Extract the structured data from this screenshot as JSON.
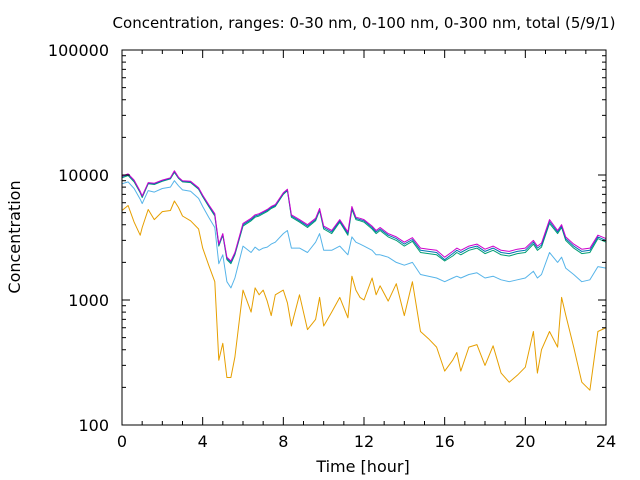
{
  "chart_data": {
    "type": "line",
    "title": "Concentration, ranges: 0-30 nm, 0-100 nm, 0-300 nm, total (5/9/1)",
    "xlabel": "Time [hour]",
    "ylabel": "Concentration",
    "xlim": [
      0,
      24
    ],
    "ylim": [
      100,
      100000
    ],
    "yscale": "log",
    "x_ticks": [
      0,
      4,
      8,
      12,
      16,
      20,
      24
    ],
    "x_tick_labels": [
      "0",
      "4",
      "8",
      "12",
      "16",
      "20",
      "24"
    ],
    "y_ticks": [
      100,
      1000,
      10000,
      100000
    ],
    "y_tick_labels": [
      "100",
      "1000",
      "10000",
      "100000"
    ],
    "grid": false,
    "series": [
      {
        "color": "#e69f00",
        "x": [
          0,
          0.3,
          0.6,
          0.9,
          1.0,
          1.3,
          1.6,
          2.0,
          2.4,
          2.6,
          2.8,
          3.0,
          3.4,
          3.8,
          4.0,
          4.3,
          4.6,
          4.8,
          5.0,
          5.2,
          5.4,
          5.6,
          6.0,
          6.4,
          6.6,
          6.8,
          7.0,
          7.2,
          7.4,
          7.6,
          8.0,
          8.2,
          8.4,
          8.8,
          9.2,
          9.6,
          9.8,
          10.0,
          10.4,
          10.8,
          11.2,
          11.4,
          11.6,
          11.8,
          12.0,
          12.4,
          12.6,
          12.8,
          13.2,
          13.6,
          14.0,
          14.4,
          14.8,
          15.2,
          15.6,
          16.0,
          16.4,
          16.6,
          16.8,
          17.2,
          17.6,
          18.0,
          18.4,
          18.8,
          19.2,
          19.6,
          20.0,
          20.4,
          20.6,
          20.8,
          21.2,
          21.6,
          21.8,
          22.0,
          22.4,
          22.8,
          23.2,
          23.6,
          24.0
        ],
        "values": [
          5200,
          5700,
          4200,
          3300,
          3800,
          5300,
          4400,
          5100,
          5200,
          6200,
          5500,
          4700,
          4300,
          3700,
          2600,
          1900,
          1400,
          330,
          450,
          240,
          240,
          350,
          1200,
          800,
          1250,
          1100,
          1200,
          980,
          750,
          1100,
          1200,
          950,
          620,
          1100,
          580,
          700,
          1050,
          620,
          800,
          1050,
          720,
          1550,
          1200,
          1050,
          1000,
          1500,
          1100,
          1300,
          980,
          1350,
          750,
          1400,
          560,
          490,
          420,
          270,
          330,
          380,
          270,
          420,
          440,
          300,
          430,
          260,
          220,
          250,
          290,
          560,
          260,
          400,
          560,
          420,
          1050,
          760,
          420,
          220,
          190,
          560,
          600
        ]
      },
      {
        "color": "#56b4e9",
        "x": [
          0,
          0.3,
          0.6,
          0.9,
          1.0,
          1.3,
          1.6,
          2.0,
          2.4,
          2.6,
          2.8,
          3.0,
          3.4,
          3.8,
          4.0,
          4.3,
          4.6,
          4.8,
          5.0,
          5.2,
          5.4,
          5.6,
          6.0,
          6.4,
          6.6,
          6.8,
          7.0,
          7.2,
          7.4,
          7.6,
          8.0,
          8.2,
          8.4,
          8.8,
          9.2,
          9.6,
          9.8,
          10.0,
          10.4,
          10.8,
          11.2,
          11.4,
          11.6,
          11.8,
          12.0,
          12.4,
          12.6,
          12.8,
          13.2,
          13.6,
          14.0,
          14.4,
          14.8,
          15.2,
          15.6,
          16.0,
          16.4,
          16.6,
          16.8,
          17.2,
          17.6,
          18.0,
          18.4,
          18.8,
          19.2,
          19.6,
          20.0,
          20.4,
          20.6,
          20.8,
          21.2,
          21.6,
          21.8,
          22.0,
          22.4,
          22.8,
          23.2,
          23.6,
          24.0
        ],
        "values": [
          8500,
          8800,
          7800,
          6400,
          5900,
          7500,
          7300,
          7800,
          8000,
          9000,
          8200,
          7600,
          7400,
          6500,
          5600,
          4600,
          3800,
          1950,
          2300,
          1400,
          1250,
          1500,
          2700,
          2400,
          2650,
          2500,
          2600,
          2650,
          2800,
          2900,
          3400,
          3600,
          2600,
          2600,
          2400,
          2900,
          3400,
          2500,
          2500,
          2700,
          2300,
          3200,
          2900,
          2800,
          2700,
          2500,
          2300,
          2300,
          2200,
          2000,
          1900,
          2000,
          1600,
          1550,
          1500,
          1400,
          1500,
          1550,
          1500,
          1600,
          1650,
          1500,
          1550,
          1450,
          1400,
          1450,
          1500,
          1700,
          1500,
          1600,
          2400,
          2000,
          2200,
          1800,
          1600,
          1400,
          1450,
          1850,
          1800
        ]
      },
      {
        "color": "#009e73",
        "x": [
          0,
          0.3,
          0.6,
          0.9,
          1.0,
          1.3,
          1.6,
          2.0,
          2.4,
          2.6,
          2.8,
          3.0,
          3.4,
          3.8,
          4.0,
          4.3,
          4.6,
          4.8,
          5.0,
          5.2,
          5.4,
          5.6,
          6.0,
          6.4,
          6.6,
          6.8,
          7.0,
          7.2,
          7.4,
          7.6,
          8.0,
          8.2,
          8.4,
          8.8,
          9.2,
          9.6,
          9.8,
          10.0,
          10.4,
          10.8,
          11.2,
          11.4,
          11.6,
          11.8,
          12.0,
          12.4,
          12.6,
          12.8,
          13.2,
          13.6,
          14.0,
          14.4,
          14.8,
          15.2,
          15.6,
          16.0,
          16.4,
          16.6,
          16.8,
          17.2,
          17.6,
          18.0,
          18.4,
          18.8,
          19.2,
          19.6,
          20.0,
          20.4,
          20.6,
          20.8,
          21.2,
          21.6,
          21.8,
          22.0,
          22.4,
          22.8,
          23.2,
          23.6,
          24.0
        ],
        "values": [
          9500,
          9900,
          8800,
          7200,
          6600,
          8500,
          8400,
          8900,
          9300,
          10500,
          9400,
          8800,
          8700,
          7700,
          6700,
          5600,
          4700,
          2700,
          3300,
          2100,
          1950,
          2300,
          3900,
          4300,
          4600,
          4700,
          4900,
          5100,
          5400,
          5600,
          7000,
          7500,
          4600,
          4200,
          3800,
          4300,
          5200,
          3700,
          3400,
          4200,
          3300,
          5300,
          4400,
          4300,
          4200,
          3700,
          3400,
          3600,
          3200,
          3000,
          2700,
          2950,
          2400,
          2350,
          2300,
          2050,
          2250,
          2400,
          2300,
          2500,
          2600,
          2350,
          2500,
          2300,
          2250,
          2350,
          2400,
          2800,
          2500,
          2650,
          4100,
          3400,
          3800,
          3000,
          2600,
          2350,
          2400,
          3100,
          2900
        ]
      },
      {
        "color": "#0072b2",
        "x": [
          0,
          0.3,
          0.6,
          0.9,
          1.0,
          1.3,
          1.6,
          2.0,
          2.4,
          2.6,
          2.8,
          3.0,
          3.4,
          3.8,
          4.0,
          4.3,
          4.6,
          4.8,
          5.0,
          5.2,
          5.4,
          5.6,
          6.0,
          6.4,
          6.6,
          6.8,
          7.0,
          7.2,
          7.4,
          7.6,
          8.0,
          8.2,
          8.4,
          8.8,
          9.2,
          9.6,
          9.8,
          10.0,
          10.4,
          10.8,
          11.2,
          11.4,
          11.6,
          11.8,
          12.0,
          12.4,
          12.6,
          12.8,
          13.2,
          13.6,
          14.0,
          14.4,
          14.8,
          15.2,
          15.6,
          16.0,
          16.4,
          16.6,
          16.8,
          17.2,
          17.6,
          18.0,
          18.4,
          18.8,
          19.2,
          19.6,
          20.0,
          20.4,
          20.6,
          20.8,
          21.2,
          21.6,
          21.8,
          22.0,
          22.4,
          22.8,
          23.2,
          23.6,
          24.0
        ],
        "values": [
          9700,
          10100,
          9000,
          7300,
          6700,
          8600,
          8500,
          9000,
          9400,
          10700,
          9500,
          8900,
          8800,
          7800,
          6800,
          5700,
          4800,
          2750,
          3350,
          2150,
          2000,
          2350,
          4000,
          4400,
          4700,
          4800,
          5000,
          5200,
          5500,
          5700,
          7100,
          7600,
          4700,
          4300,
          3900,
          4400,
          5300,
          3800,
          3500,
          4300,
          3400,
          5450,
          4500,
          4400,
          4300,
          3800,
          3500,
          3700,
          3300,
          3100,
          2800,
          3050,
          2500,
          2450,
          2400,
          2100,
          2350,
          2500,
          2400,
          2600,
          2700,
          2450,
          2600,
          2400,
          2350,
          2450,
          2500,
          2900,
          2600,
          2750,
          4250,
          3500,
          3900,
          3100,
          2700,
          2450,
          2500,
          3200,
          3000
        ]
      },
      {
        "color": "#cc00cc",
        "x": [
          0,
          0.3,
          0.6,
          0.9,
          1.0,
          1.3,
          1.6,
          2.0,
          2.4,
          2.6,
          2.8,
          3.0,
          3.4,
          3.8,
          4.0,
          4.3,
          4.6,
          4.8,
          5.0,
          5.2,
          5.4,
          5.6,
          6.0,
          6.4,
          6.6,
          6.8,
          7.0,
          7.2,
          7.4,
          7.6,
          8.0,
          8.2,
          8.4,
          8.8,
          9.2,
          9.6,
          9.8,
          10.0,
          10.4,
          10.8,
          11.2,
          11.4,
          11.6,
          11.8,
          12.0,
          12.4,
          12.6,
          12.8,
          13.2,
          13.6,
          14.0,
          14.4,
          14.8,
          15.2,
          15.6,
          16.0,
          16.4,
          16.6,
          16.8,
          17.2,
          17.6,
          18.0,
          18.4,
          18.8,
          19.2,
          19.6,
          20.0,
          20.4,
          20.6,
          20.8,
          21.2,
          21.6,
          21.8,
          22.0,
          22.4,
          22.8,
          23.2,
          23.6,
          24.0
        ],
        "values": [
          9800,
          10200,
          9100,
          7400,
          6800,
          8700,
          8600,
          9100,
          9500,
          10800,
          9600,
          9000,
          8900,
          7900,
          6900,
          5800,
          4900,
          2800,
          3400,
          2200,
          2050,
          2400,
          4100,
          4500,
          4800,
          4900,
          5100,
          5300,
          5600,
          5800,
          7200,
          7700,
          4800,
          4400,
          4000,
          4500,
          5400,
          3900,
          3600,
          4400,
          3500,
          5600,
          4600,
          4500,
          4400,
          3900,
          3600,
          3800,
          3400,
          3200,
          2900,
          3150,
          2600,
          2550,
          2500,
          2200,
          2450,
          2600,
          2500,
          2700,
          2800,
          2550,
          2700,
          2500,
          2450,
          2550,
          2600,
          3000,
          2700,
          2850,
          4400,
          3600,
          4000,
          3200,
          2800,
          2550,
          2600,
          3300,
          3100
        ]
      }
    ]
  }
}
